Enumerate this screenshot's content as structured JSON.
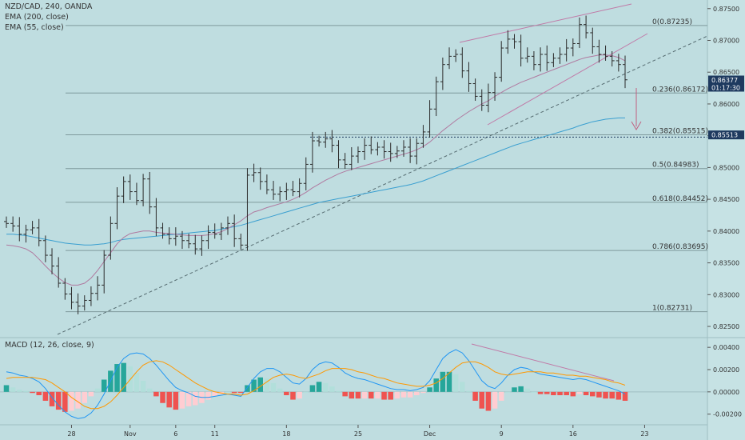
{
  "header": {
    "symbol_line": "NZD/CAD, 240, OANDA",
    "ema200_label": "EMA (200, close)",
    "ema55_label": "EMA (55, close)"
  },
  "macd_panel": {
    "label": "MACD (12, 26, close, 9)"
  },
  "chart_data": {
    "type": "candlestick",
    "price_axis": {
      "ylim": [
        0.8245,
        0.8756
      ],
      "ticks": [
        "0.87500",
        "0.87000",
        "0.86500",
        "0.86000",
        "0.85500",
        "0.85000",
        "0.84500",
        "0.84000",
        "0.83500",
        "0.83000",
        "0.82500"
      ],
      "tick_values": [
        0.875,
        0.87,
        0.865,
        0.86,
        0.855,
        0.85,
        0.845,
        0.84,
        0.835,
        0.83,
        0.825
      ]
    },
    "macd_axis": {
      "ylim": [
        -0.0026,
        0.0043
      ],
      "ticks": [
        "0.00400",
        "0.00200",
        "0.00000",
        "-0.00200"
      ],
      "tick_values": [
        0.004,
        0.002,
        0.0,
        -0.002
      ]
    },
    "x_axis": {
      "ticks": [
        "28",
        "Nov",
        "6",
        "11",
        "18",
        "25",
        "Dec",
        "9",
        "16",
        "23"
      ],
      "tick_index": [
        10,
        19,
        26,
        32,
        43,
        54,
        65,
        76,
        87,
        98
      ]
    },
    "fib_levels": [
      {
        "label": "0(0.87235)",
        "value": 0.87235
      },
      {
        "label": "0.236(0.86172)",
        "value": 0.86172
      },
      {
        "label": "0.382(0.85515)",
        "value": 0.85515
      },
      {
        "label": "0.5(0.84983)",
        "value": 0.84983
      },
      {
        "label": "0.618(0.84452)",
        "value": 0.84452
      },
      {
        "label": "0.786(0.83695)",
        "value": 0.83695
      },
      {
        "label": "1(0.82731)",
        "value": 0.82731
      }
    ],
    "price_tags": [
      {
        "label": "0.86377",
        "sub": "01:17:30",
        "value": 0.86377,
        "color": "#1e3a5f"
      },
      {
        "label": "0.85513",
        "value": 0.85513,
        "color": "#1e3a5f"
      }
    ],
    "closes": [
      0.8412,
      0.8408,
      0.8395,
      0.8402,
      0.8405,
      0.8385,
      0.8362,
      0.8345,
      0.8318,
      0.8301,
      0.8288,
      0.8282,
      0.8291,
      0.8302,
      0.8315,
      0.8362,
      0.8412,
      0.8455,
      0.8478,
      0.8462,
      0.8448,
      0.8482,
      0.8438,
      0.8405,
      0.8395,
      0.8388,
      0.8392,
      0.8385,
      0.838,
      0.8372,
      0.8385,
      0.8398,
      0.8395,
      0.8405,
      0.8412,
      0.8388,
      0.8378,
      0.8488,
      0.8492,
      0.8478,
      0.8465,
      0.8458,
      0.8462,
      0.8465,
      0.8462,
      0.8475,
      0.8505,
      0.8542,
      0.854,
      0.8545,
      0.8535,
      0.8512,
      0.8505,
      0.8518,
      0.8525,
      0.8535,
      0.8528,
      0.8532,
      0.8525,
      0.8522,
      0.8526,
      0.8532,
      0.8518,
      0.8538,
      0.8556,
      0.8592,
      0.8635,
      0.8662,
      0.8675,
      0.8678,
      0.8652,
      0.8632,
      0.8612,
      0.8598,
      0.8618,
      0.8642,
      0.8688,
      0.8702,
      0.8698,
      0.8672,
      0.8675,
      0.8662,
      0.8678,
      0.8665,
      0.8672,
      0.8678,
      0.8688,
      0.8695,
      0.8725,
      0.8712,
      0.869,
      0.8678,
      0.8675,
      0.8668,
      0.8662,
      0.8638
    ],
    "ema55": [
      0.8378,
      0.8377,
      0.8375,
      0.8372,
      0.8366,
      0.8356,
      0.8345,
      0.8335,
      0.8326,
      0.8319,
      0.8315,
      0.8315,
      0.8318,
      0.8326,
      0.8338,
      0.8352,
      0.8366,
      0.838,
      0.839,
      0.8396,
      0.8398,
      0.84,
      0.84,
      0.8398,
      0.8397,
      0.8396,
      0.8395,
      0.8394,
      0.8393,
      0.8393,
      0.8393,
      0.8394,
      0.8396,
      0.8399,
      0.8404,
      0.841,
      0.8416,
      0.8424,
      0.843,
      0.8433,
      0.8437,
      0.844,
      0.8443,
      0.8446,
      0.845,
      0.8455,
      0.8461,
      0.8468,
      0.8474,
      0.848,
      0.8485,
      0.849,
      0.8494,
      0.8497,
      0.85,
      0.8503,
      0.8506,
      0.8509,
      0.8512,
      0.8515,
      0.8518,
      0.8521,
      0.8524,
      0.8528,
      0.8533,
      0.854,
      0.8549,
      0.8558,
      0.8566,
      0.8574,
      0.8581,
      0.8588,
      0.8594,
      0.86,
      0.8605,
      0.8612,
      0.8618,
      0.8624,
      0.8629,
      0.8634,
      0.8638,
      0.8642,
      0.8646,
      0.865,
      0.8654,
      0.8658,
      0.8662,
      0.8666,
      0.867,
      0.8673,
      0.8675,
      0.8677,
      0.8677,
      0.8676,
      0.8673,
      0.8668
    ],
    "ema200": [
      0.8395,
      0.8395,
      0.8394,
      0.8393,
      0.8391,
      0.8389,
      0.8387,
      0.8385,
      0.8383,
      0.8381,
      0.838,
      0.8379,
      0.8378,
      0.8378,
      0.8379,
      0.838,
      0.8382,
      0.8385,
      0.8387,
      0.8388,
      0.8389,
      0.839,
      0.8391,
      0.8392,
      0.8393,
      0.8394,
      0.8395,
      0.8396,
      0.8397,
      0.8398,
      0.8399,
      0.84,
      0.8401,
      0.8403,
      0.8405,
      0.8407,
      0.8409,
      0.8412,
      0.8415,
      0.8418,
      0.8421,
      0.8424,
      0.8427,
      0.843,
      0.8433,
      0.8436,
      0.8439,
      0.8442,
      0.8445,
      0.8447,
      0.8449,
      0.8451,
      0.8453,
      0.8455,
      0.8457,
      0.8459,
      0.8461,
      0.8463,
      0.8465,
      0.8467,
      0.8469,
      0.8471,
      0.8473,
      0.8476,
      0.8479,
      0.8483,
      0.8487,
      0.8491,
      0.8495,
      0.8499,
      0.8503,
      0.8507,
      0.8511,
      0.8515,
      0.8519,
      0.8523,
      0.8527,
      0.8531,
      0.8535,
      0.8538,
      0.8541,
      0.8544,
      0.8547,
      0.855,
      0.8553,
      0.8556,
      0.8559,
      0.8562,
      0.8566,
      0.8569,
      0.8572,
      0.8574,
      0.8576,
      0.8577,
      0.8578,
      0.8578
    ],
    "macd_line": [
      0.0018,
      0.0017,
      0.0015,
      0.0014,
      0.0012,
      0.0009,
      0.0003,
      -0.0005,
      -0.0012,
      -0.0018,
      -0.0022,
      -0.0024,
      -0.0023,
      -0.0019,
      -0.0012,
      -0.0002,
      0.001,
      0.0022,
      0.003,
      0.0034,
      0.0035,
      0.0034,
      0.003,
      0.0024,
      0.0017,
      0.001,
      0.0004,
      0.0001,
      -0.0001,
      -0.0004,
      -0.0005,
      -0.0005,
      -0.0004,
      -0.0003,
      -0.0002,
      -0.0003,
      -0.0004,
      0.0004,
      0.0012,
      0.0018,
      0.0021,
      0.0021,
      0.0018,
      0.0013,
      0.0008,
      0.0007,
      0.0012,
      0.002,
      0.0025,
      0.0027,
      0.0026,
      0.0022,
      0.0017,
      0.0014,
      0.0012,
      0.0011,
      0.0009,
      0.0007,
      0.0005,
      0.0003,
      0.0002,
      0.0002,
      0.0001,
      0.0002,
      0.0004,
      0.001,
      0.002,
      0.003,
      0.0035,
      0.0038,
      0.0035,
      0.0028,
      0.0019,
      0.001,
      0.0005,
      0.0003,
      0.0008,
      0.0015,
      0.002,
      0.0022,
      0.0021,
      0.0018,
      0.0016,
      0.0015,
      0.0014,
      0.0013,
      0.0012,
      0.0011,
      0.0012,
      0.0011,
      0.0009,
      0.0007,
      0.0005,
      0.0003,
      0.0001,
      -0.0002
    ],
    "signal_line": [
      0.0012,
      0.0013,
      0.0013,
      0.0013,
      0.0013,
      0.0012,
      0.0011,
      0.0008,
      0.0004,
      0.0,
      -0.0005,
      -0.0009,
      -0.0013,
      -0.0015,
      -0.0015,
      -0.0013,
      -0.0009,
      -0.0003,
      0.0004,
      0.0011,
      0.0018,
      0.0024,
      0.0027,
      0.0028,
      0.0027,
      0.0024,
      0.002,
      0.0016,
      0.0012,
      0.0008,
      0.0005,
      0.0002,
      0.0,
      -0.0001,
      -0.0002,
      -0.0002,
      -0.0003,
      -0.0002,
      0.0001,
      0.0005,
      0.0009,
      0.0013,
      0.0015,
      0.0016,
      0.0015,
      0.0013,
      0.0012,
      0.0014,
      0.0016,
      0.0019,
      0.0021,
      0.0021,
      0.0021,
      0.002,
      0.0018,
      0.0017,
      0.0015,
      0.0013,
      0.0012,
      0.001,
      0.0008,
      0.0007,
      0.0006,
      0.0005,
      0.0005,
      0.0006,
      0.0008,
      0.0012,
      0.0017,
      0.0022,
      0.0026,
      0.0027,
      0.0027,
      0.0025,
      0.0022,
      0.0018,
      0.0016,
      0.0015,
      0.0016,
      0.0017,
      0.0018,
      0.0018,
      0.0018,
      0.0017,
      0.0017,
      0.0016,
      0.0015,
      0.0015,
      0.0014,
      0.0014,
      0.0013,
      0.0012,
      0.0011,
      0.0009,
      0.0008,
      0.0006
    ]
  }
}
